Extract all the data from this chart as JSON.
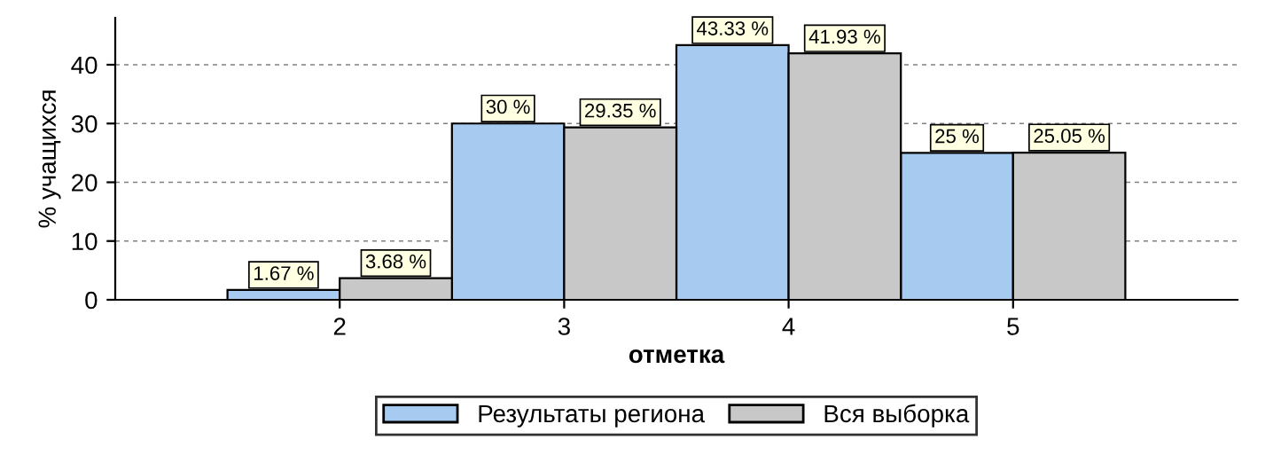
{
  "chart_data": {
    "type": "bar",
    "xlabel": "отметка",
    "ylabel": "% учащихся",
    "categories": [
      "2",
      "3",
      "4",
      "5"
    ],
    "series": [
      {
        "name": "Результаты региона",
        "color": "#a6caf0",
        "values": [
          1.67,
          30,
          43.33,
          25
        ],
        "value_labels": [
          "1.67 %",
          "30 %",
          "43.33 %",
          "25 %"
        ]
      },
      {
        "name": "Вся выборка",
        "color": "#c8c8c8",
        "values": [
          3.68,
          29.35,
          41.93,
          25.05
        ],
        "value_labels": [
          "3.68 %",
          "29.35 %",
          "41.93 %",
          "25.05 %"
        ]
      }
    ],
    "ylim": [
      0,
      48
    ],
    "yticks": [
      0,
      10,
      20,
      30,
      40
    ],
    "grid": "y",
    "legend": "bottom"
  }
}
